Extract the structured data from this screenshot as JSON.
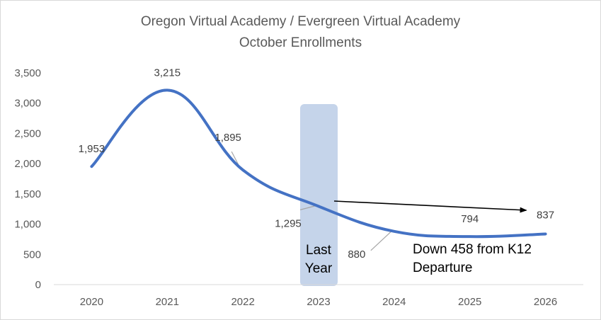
{
  "header": {
    "title": "Oregon Virtual Academy / Evergreen Virtual Academy",
    "subtitle": "October Enrollments"
  },
  "colors": {
    "line": "#4472c4",
    "highlight": "#c5d4ea",
    "grid": "#d9d9d9",
    "text": "#595959",
    "arrow": "#000000"
  },
  "chart_data": {
    "type": "line",
    "title": "Oregon Virtual Academy / Evergreen Virtual Academy",
    "subtitle": "October Enrollments",
    "categories": [
      "2020",
      "2021",
      "2022",
      "2023",
      "2024",
      "2025",
      "2026"
    ],
    "values": [
      1953,
      3215,
      1895,
      1295,
      880,
      794,
      837
    ],
    "data_labels": [
      "1,953",
      "3,215",
      "1,895",
      "1,295",
      "880",
      "794",
      "837"
    ],
    "ylim": [
      0,
      3500
    ],
    "yticks": [
      0,
      500,
      1000,
      1500,
      2000,
      2500,
      3000,
      3500
    ],
    "ytick_labels": [
      "0",
      "500",
      "1,000",
      "1,500",
      "2,000",
      "2,500",
      "3,000",
      "3,500"
    ],
    "smooth": true,
    "grid": false,
    "legend": "none",
    "highlight": {
      "category": "2023",
      "label_lines": [
        "Last",
        "Year"
      ]
    },
    "annotation": {
      "lines": [
        "Down 458 from K12",
        "Departure"
      ],
      "arrow": {
        "from": "2023",
        "to": "2026"
      }
    }
  }
}
